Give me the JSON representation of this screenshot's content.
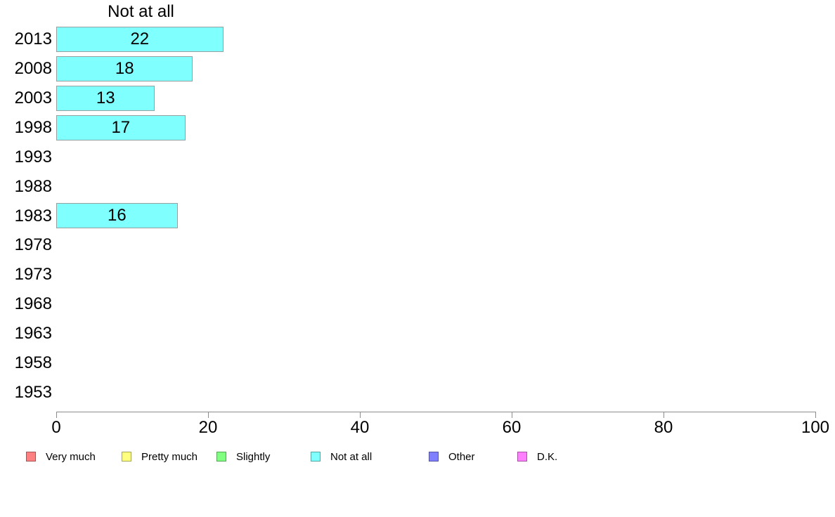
{
  "chart_data": {
    "type": "bar",
    "orientation": "horizontal",
    "title": "Not at all",
    "categories": [
      "2013",
      "2008",
      "2003",
      "1998",
      "1993",
      "1988",
      "1983",
      "1978",
      "1973",
      "1968",
      "1963",
      "1958",
      "1953"
    ],
    "values": [
      22,
      18,
      13,
      17,
      null,
      null,
      16,
      null,
      null,
      null,
      null,
      null,
      null
    ],
    "value_labels": [
      "22",
      "18",
      "13",
      "17",
      "",
      "",
      "16",
      "",
      "",
      "",
      "",
      "",
      ""
    ],
    "xlabel": "",
    "ylabel": "",
    "xlim": [
      0,
      100
    ],
    "x_ticks": [
      0,
      20,
      40,
      60,
      80,
      100
    ],
    "x_tick_labels": [
      "0",
      "20",
      "40",
      "60",
      "80",
      "100"
    ],
    "grid": false,
    "bar_color": "#80FFFF",
    "bar_border_color": "#95a0a0",
    "axis_color": "#8c8c8c",
    "text_color": "#000000",
    "legend_position": "bottom"
  },
  "legend": {
    "items": [
      {
        "label": "Very much",
        "color": "#FF8080"
      },
      {
        "label": "Pretty much",
        "color": "#FFFF80"
      },
      {
        "label": "Slightly",
        "color": "#80FF80"
      },
      {
        "label": "Not at all",
        "color": "#80FFFF"
      },
      {
        "label": "Other",
        "color": "#8080FF"
      },
      {
        "label": "D.K.",
        "color": "#FF80FF"
      }
    ]
  }
}
